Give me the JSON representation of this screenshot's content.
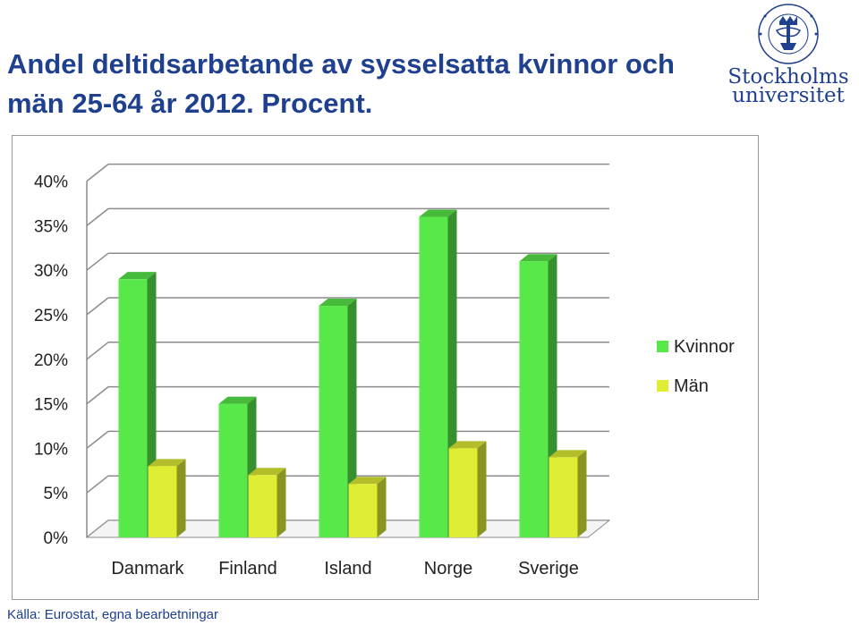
{
  "header": {
    "title": "Andel deltidsarbetande av sysselsatta kvinnor och män 25-64 år 2012. Procent."
  },
  "logo": {
    "name_line1": "Stockholms",
    "name_line2": "universitet",
    "seal_text": "UNIVERSITET STOCKHOLMS",
    "color": "#1f3f8f"
  },
  "footer": {
    "source": "Källa: Eurostat, egna bearbetningar"
  },
  "chart_data": {
    "type": "bar",
    "style": "3d-clustered",
    "categories": [
      "Danmark",
      "Finland",
      "Island",
      "Norge",
      "Sverige"
    ],
    "series": [
      {
        "name": "Kvinnor",
        "values": [
          29,
          15,
          26,
          36,
          31
        ],
        "color": "#59e84a"
      },
      {
        "name": "Män",
        "values": [
          8,
          7,
          6,
          10,
          9
        ],
        "color": "#dfee35"
      }
    ],
    "ylim": [
      0,
      40
    ],
    "yticks": [
      "0%",
      "5%",
      "10%",
      "15%",
      "20%",
      "25%",
      "30%",
      "35%",
      "40%"
    ],
    "grid": true,
    "legend_position": "right"
  }
}
